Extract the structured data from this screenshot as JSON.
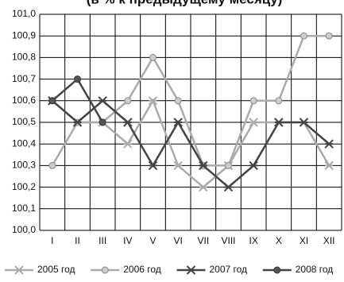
{
  "chart_data": {
    "type": "line",
    "title": "(в % к предыдущему месяцу)",
    "categories": [
      "I",
      "II",
      "III",
      "IV",
      "V",
      "VI",
      "VII",
      "VIII",
      "IX",
      "X",
      "XI",
      "XII"
    ],
    "series": [
      {
        "name": "2005 год",
        "color": "#aaaaaa",
        "marker": "star",
        "values": [
          100.6,
          100.5,
          100.5,
          100.4,
          100.6,
          100.3,
          100.2,
          100.3,
          100.5,
          100.5,
          100.5,
          100.3
        ]
      },
      {
        "name": "2006 год",
        "color": "#aaaaaa",
        "marker": "circle",
        "values": [
          100.3,
          100.5,
          100.5,
          100.6,
          100.8,
          100.6,
          100.3,
          100.3,
          100.6,
          100.6,
          100.9,
          100.9
        ]
      },
      {
        "name": "2007 год",
        "color": "#444444",
        "marker": "star",
        "values": [
          100.6,
          100.5,
          100.6,
          100.5,
          100.3,
          100.5,
          100.3,
          100.2,
          100.3,
          100.5,
          100.5,
          100.4
        ]
      },
      {
        "name": "2008 год",
        "color": "#444444",
        "marker": "circle",
        "values": [
          100.6,
          100.7,
          100.5,
          null,
          null,
          null,
          null,
          null,
          null,
          null,
          null,
          null
        ]
      }
    ],
    "ylim": [
      100.0,
      101.0
    ],
    "yticks": [
      {
        "value": 100.0,
        "label": "100,0"
      },
      {
        "value": 100.1,
        "label": "100,1"
      },
      {
        "value": 100.2,
        "label": "100,2"
      },
      {
        "value": 100.3,
        "label": "100,3"
      },
      {
        "value": 100.4,
        "label": "100,4"
      },
      {
        "value": 100.5,
        "label": "100,5"
      },
      {
        "value": 100.6,
        "label": "100,6"
      },
      {
        "value": 100.7,
        "label": "100,7"
      },
      {
        "value": 100.8,
        "label": "100,8"
      },
      {
        "value": 100.9,
        "label": "100,9"
      },
      {
        "value": 101.0,
        "label": "101,0"
      }
    ],
    "grid": true
  }
}
